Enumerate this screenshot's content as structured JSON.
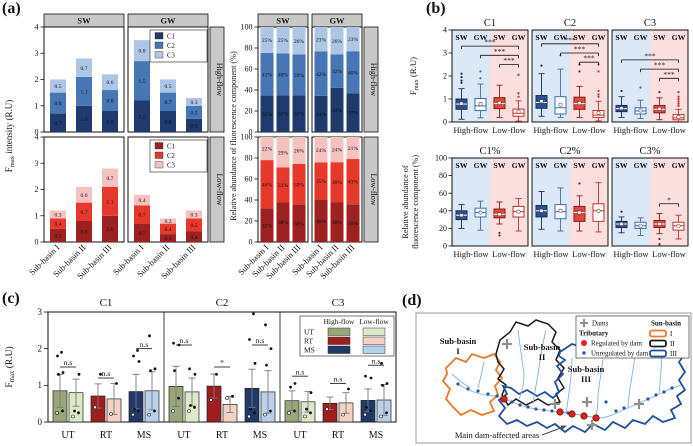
{
  "figure": {
    "panel_labels": {
      "a": "(a)",
      "b": "(b)",
      "c": "(c)",
      "d": "(d)"
    }
  },
  "colors": {
    "blue": [
      "#1e3a6e",
      "#4676b5",
      "#aec6e6"
    ],
    "red": [
      "#9e2121",
      "#e6392c",
      "#f6c2c0"
    ],
    "header_gray": "#c8c8c8",
    "bg_blue": "#dbe8f6",
    "bg_pink": "#fbdede",
    "box_styles": [
      "bf",
      "bo",
      "rf",
      "ro"
    ],
    "box": {
      "bf": {
        "f": "#2e4e8e",
        "s": "#162f5c",
        "m": "#ffffff",
        "fill": true
      },
      "bo": {
        "f": "#ffffff",
        "s": "#3c6cb4",
        "m": "#3c6cb4",
        "fill": false
      },
      "rf": {
        "f": "#d9493c",
        "s": "#8f1b14",
        "m": "#ffffff",
        "fill": true
      },
      "ro": {
        "f": "#ffffff",
        "s": "#c23326",
        "m": "#c23326",
        "fill": false
      }
    },
    "c_high": [
      "#97a778",
      "#9e1e1e",
      "#1f3a68"
    ],
    "c_low": [
      "#dde8c9",
      "#f3d1c5",
      "#b9d0ea"
    ],
    "map": {
      "b1": "#e87a28",
      "b2": "#1a1a1a",
      "b3": "#1f4e9e",
      "river": "#7fb2e0",
      "red_dot": "#e01f1f",
      "blue_dot": "#2458a8",
      "cross": "#8f8f8f",
      "label1": "#e02914"
    }
  },
  "chart_data": [
    {
      "id": "a_left",
      "type": "bar",
      "stacked": true,
      "ylabel": {
        "pre": "F",
        "sub": "max",
        "post": " intensity (R.U)"
      },
      "ylim": [
        0,
        4
      ],
      "yticks": [
        0,
        1,
        2,
        3,
        4
      ],
      "group_headers": [
        "SW",
        "GW"
      ],
      "categories": [
        "Sub-basin I",
        "Sub-basin II",
        "Sub-basin III"
      ],
      "legend": [
        "C1",
        "C2",
        "C3"
      ],
      "segment_order": [
        "C1",
        "C2",
        "C3"
      ],
      "rows": [
        {
          "name": "High-flow",
          "palette": "blue",
          "bars": {
            "SW": [
              [
                0.7,
                0.8,
                0.5
              ],
              [
                1.0,
                1.1,
                0.7
              ],
              [
                0.8,
                0.8,
                0.6
              ]
            ],
            "GW": [
              [
                1.2,
                1.5,
                0.8
              ],
              [
                0.8,
                0.7,
                0.5
              ],
              [
                0.5,
                0.5,
                0.3
              ]
            ]
          }
        },
        {
          "name": "Low-flow",
          "palette": "red",
          "bars": {
            "SW": [
              [
                0.5,
                0.4,
                0.3
              ],
              [
                0.8,
                0.7,
                0.6
              ],
              [
                1.0,
                1.1,
                0.7
              ]
            ],
            "GW": [
              [
                0.7,
                0.7,
                0.4
              ],
              [
                0.3,
                0.4,
                0.2
              ],
              [
                0.4,
                0.5,
                0.3
              ]
            ]
          }
        }
      ]
    },
    {
      "id": "a_right",
      "type": "bar",
      "stacked": true,
      "unit": "%",
      "ylabel": "Relative abundance of fluorescence component (%)",
      "ylim": [
        0,
        100
      ],
      "yticks": [
        0,
        20,
        40,
        60,
        80,
        100
      ],
      "group_headers": [
        "SW",
        "GW"
      ],
      "categories": [
        "Sub-basin I",
        "Sub-basin II",
        "Sub-basin III"
      ],
      "segment_order": [
        "C1",
        "C2",
        "C3"
      ],
      "rows": [
        {
          "name": "High-flow",
          "palette": "blue",
          "bars": {
            "SW": [
              [
                35,
                41,
                25
              ],
              [
                35,
                40,
                25
              ],
              [
                35,
                39,
                26
              ]
            ],
            "GW": [
              [
                34,
                42,
                23
              ],
              [
                42,
                32,
                26
              ],
              [
                37,
                40,
                23
              ]
            ]
          }
        },
        {
          "name": "Low-flow",
          "palette": "red",
          "bars": {
            "SW": [
              [
                32,
                46,
                22
              ],
              [
                38,
                33,
                29
              ],
              [
                36,
                39,
                26
              ]
            ],
            "GW": [
              [
                40,
                35,
                24
              ],
              [
                38,
                38,
                24
              ],
              [
                36,
                43,
                21
              ]
            ]
          }
        }
      ]
    },
    {
      "id": "b_top",
      "type": "box",
      "ylabel": {
        "pre": "F",
        "sub": "max",
        "post": " (R.U)"
      },
      "ylim": [
        0,
        4
      ],
      "yticks": [
        0,
        1,
        2,
        3,
        4
      ],
      "col_labels": [
        "SW",
        "GW",
        "SW",
        "GW"
      ],
      "xgroups": [
        "High-flow",
        "Low-flow"
      ],
      "box_order": "wlo,q1,med,q3,whi,mean,outliers",
      "subplots": [
        {
          "title": "C1",
          "boxes": [
            [
              0.12,
              0.55,
              0.78,
              1.0,
              1.45,
              0.8,
              [
                1.7,
                1.8,
                1.95,
                2.1
              ]
            ],
            [
              0.18,
              0.5,
              0.7,
              1.02,
              1.65,
              0.78,
              [
                1.9,
                2.2
              ]
            ],
            [
              0.2,
              0.58,
              0.8,
              1.06,
              1.6,
              0.83,
              []
            ],
            [
              0.04,
              0.25,
              0.38,
              0.56,
              0.92,
              0.45,
              [
                1.1,
                1.25,
                2.05
              ]
            ]
          ],
          "brackets": [
            [
              0,
              3,
              3.3,
              "***"
            ],
            [
              1,
              3,
              2.9,
              "***"
            ],
            [
              2,
              3,
              2.5,
              "***"
            ]
          ]
        },
        {
          "title": "C2",
          "boxes": [
            [
              0.25,
              0.6,
              0.85,
              1.15,
              2.1,
              0.9,
              [
                2.45
              ]
            ],
            [
              0.2,
              0.35,
              0.62,
              1.1,
              2.3,
              0.75,
              [
                2.9
              ]
            ],
            [
              0.2,
              0.55,
              0.8,
              1.08,
              1.55,
              0.82,
              [
                2.2,
                2.5
              ]
            ],
            [
              0.05,
              0.2,
              0.3,
              0.5,
              0.9,
              0.4,
              [
                1.1,
                1.2,
                1.35,
                2.2,
                2.5
              ]
            ]
          ],
          "brackets": [
            [
              0,
              3,
              3.4,
              "***"
            ],
            [
              1,
              3,
              3.0,
              "***"
            ],
            [
              2,
              3,
              2.6,
              "***"
            ]
          ]
        },
        {
          "title": "C3",
          "boxes": [
            [
              0.2,
              0.45,
              0.58,
              0.72,
              1.1,
              0.6,
              [
                1.35
              ]
            ],
            [
              0.15,
              0.35,
              0.48,
              0.62,
              0.95,
              0.5,
              [
                1.5
              ]
            ],
            [
              0.1,
              0.4,
              0.55,
              0.72,
              1.05,
              0.57,
              [
                1.3
              ]
            ],
            [
              0.02,
              0.1,
              0.18,
              0.32,
              0.55,
              0.22,
              [
                0.7,
                0.8,
                0.9,
                1.0,
                1.1,
                1.3
              ]
            ]
          ],
          "brackets": [
            [
              0,
              3,
              2.7,
              "***"
            ],
            [
              1,
              3,
              2.3,
              "***"
            ],
            [
              2,
              3,
              1.9,
              "***"
            ]
          ]
        }
      ]
    },
    {
      "id": "b_bottom",
      "type": "box",
      "ylabel_lines": [
        "Relative abundance of",
        "fluorescence component (%)"
      ],
      "ylim": [
        0,
        100
      ],
      "yticks": [
        0,
        20,
        40,
        60,
        80,
        100
      ],
      "col_labels": [
        "SW",
        "GW",
        "SW",
        "GW"
      ],
      "xgroups": [
        "High-flow",
        "Low-flow"
      ],
      "subplots": [
        {
          "title": "C1%",
          "boxes": [
            [
              20,
              30,
              35,
              40,
              47,
              35,
              []
            ],
            [
              18,
              33,
              38,
              43,
              51,
              38,
              []
            ],
            [
              25,
              32,
              36,
              42,
              50,
              36,
              [
                15,
                12
              ]
            ],
            [
              17,
              33,
              39,
              45,
              54,
              39,
              []
            ]
          ],
          "brackets": []
        },
        {
          "title": "C2%",
          "boxes": [
            [
              19,
              33,
              40,
              46,
              62,
              40,
              []
            ],
            [
              17,
              31,
              39,
              47,
              66,
              40,
              []
            ],
            [
              17,
              28,
              38,
              45,
              57,
              38,
              [
                71
              ]
            ],
            [
              16,
              28,
              40,
              48,
              72,
              40,
              []
            ]
          ],
          "brackets": []
        },
        {
          "title": "C3%",
          "boxes": [
            [
              15,
              21,
              25,
              28,
              33,
              25,
              [
                39
              ]
            ],
            [
              12,
              20,
              23,
              27,
              32,
              23,
              []
            ],
            [
              14,
              21,
              25,
              29,
              37,
              25,
              [
                8,
                2
              ]
            ],
            [
              8,
              18,
              23,
              27,
              35,
              23,
              []
            ]
          ],
          "brackets": [
            [
              2,
              3,
              48,
              "*"
            ]
          ]
        }
      ]
    },
    {
      "id": "c",
      "type": "bar",
      "grouped": true,
      "ylabel": {
        "pre": "F",
        "sub": "max",
        "post": " (R.U)"
      },
      "ylim": [
        0,
        3
      ],
      "yticks": [
        0,
        1,
        2,
        3
      ],
      "cats": [
        "UT",
        "RT",
        "MS"
      ],
      "legend": {
        "headers": [
          "High-flow",
          "Low-flow"
        ],
        "rows": [
          "UT",
          "RT",
          "MS"
        ]
      },
      "groups": [
        {
          "title": "C1",
          "high": [
            0.85,
            0.71,
            0.83
          ],
          "high_sd": [
            0.45,
            0.33,
            0.47
          ],
          "low": [
            0.8,
            0.63,
            0.85
          ],
          "low_sd": [
            0.37,
            0.42,
            0.52
          ],
          "sig": [
            "n.s",
            "n.s",
            "n.s"
          ],
          "sig_y": [
            1.5,
            1.2,
            2.0
          ],
          "dots_high": [
            [
              0.25,
              0.3,
              1.3,
              1.35,
              1.8,
              1.9
            ],
            [
              0.4,
              1.3
            ],
            [
              0.2,
              0.3,
              0.35,
              1.65,
              1.8,
              1.95
            ]
          ],
          "dots_low": [
            [
              0.15,
              0.25,
              0.3,
              1.3
            ],
            [
              0.22,
              1.05
            ],
            [
              0.2,
              0.3,
              1.4,
              1.45,
              2.35
            ]
          ]
        },
        {
          "title": "C2",
          "high": [
            0.97,
            0.98,
            0.92
          ],
          "high_sd": [
            0.55,
            0.33,
            0.52
          ],
          "low": [
            0.82,
            0.48,
            0.82
          ],
          "low_sd": [
            0.38,
            0.22,
            0.58
          ],
          "sig": [
            "n.s",
            "*",
            "n.s"
          ],
          "sig_y": [
            2.1,
            1.5,
            2.1
          ],
          "dots_high": [
            [
              0.3,
              0.65,
              1.4,
              2.1,
              2.15
            ],
            [
              0.6,
              1.3
            ],
            [
              0.15,
              0.25,
              0.35,
              1.6,
              2.25,
              2.95
            ]
          ],
          "dots_low": [
            [
              0.3,
              0.4,
              0.45,
              1.3,
              1.45
            ],
            [
              0.65,
              0.7
            ],
            [
              0.2,
              0.3,
              1.55,
              2.0,
              2.65
            ]
          ]
        },
        {
          "title": "C3",
          "high": [
            0.58,
            0.51,
            0.59
          ],
          "high_sd": [
            0.27,
            0.17,
            0.31
          ],
          "low": [
            0.55,
            0.52,
            0.6
          ],
          "low_sd": [
            0.28,
            0.28,
            0.42
          ],
          "sig": [
            "n.s",
            "n.s",
            "n.s"
          ],
          "sig_y": [
            1.25,
            1.05,
            1.55
          ],
          "dots_high": [
            [
              0.25,
              0.3,
              0.95,
              1.05
            ],
            [
              0.35
            ],
            [
              0.2,
              0.3,
              0.4,
              1.2,
              1.25
            ]
          ],
          "dots_low": [
            [
              0.15,
              0.25,
              0.35,
              0.8
            ],
            [
              0.2,
              0.9
            ],
            [
              0.15,
              0.25,
              1.0,
              1.05,
              1.6
            ]
          ]
        }
      ]
    }
  ],
  "map": {
    "legend": {
      "dams": "Dams",
      "tributary": "Tributary",
      "regulated": "Regulated by dam",
      "unregulated": "Unregulated by dam",
      "subbasin_header": "Sun-basin",
      "basin_items": [
        "I",
        "II",
        "III"
      ]
    },
    "labels": {
      "basin1": [
        "Sub-basin",
        "I"
      ],
      "basin2": [
        "Sub-basin",
        "II"
      ],
      "basin3": [
        "Sub-basin",
        "III"
      ]
    },
    "annotation": "Main dam-affected areas"
  }
}
